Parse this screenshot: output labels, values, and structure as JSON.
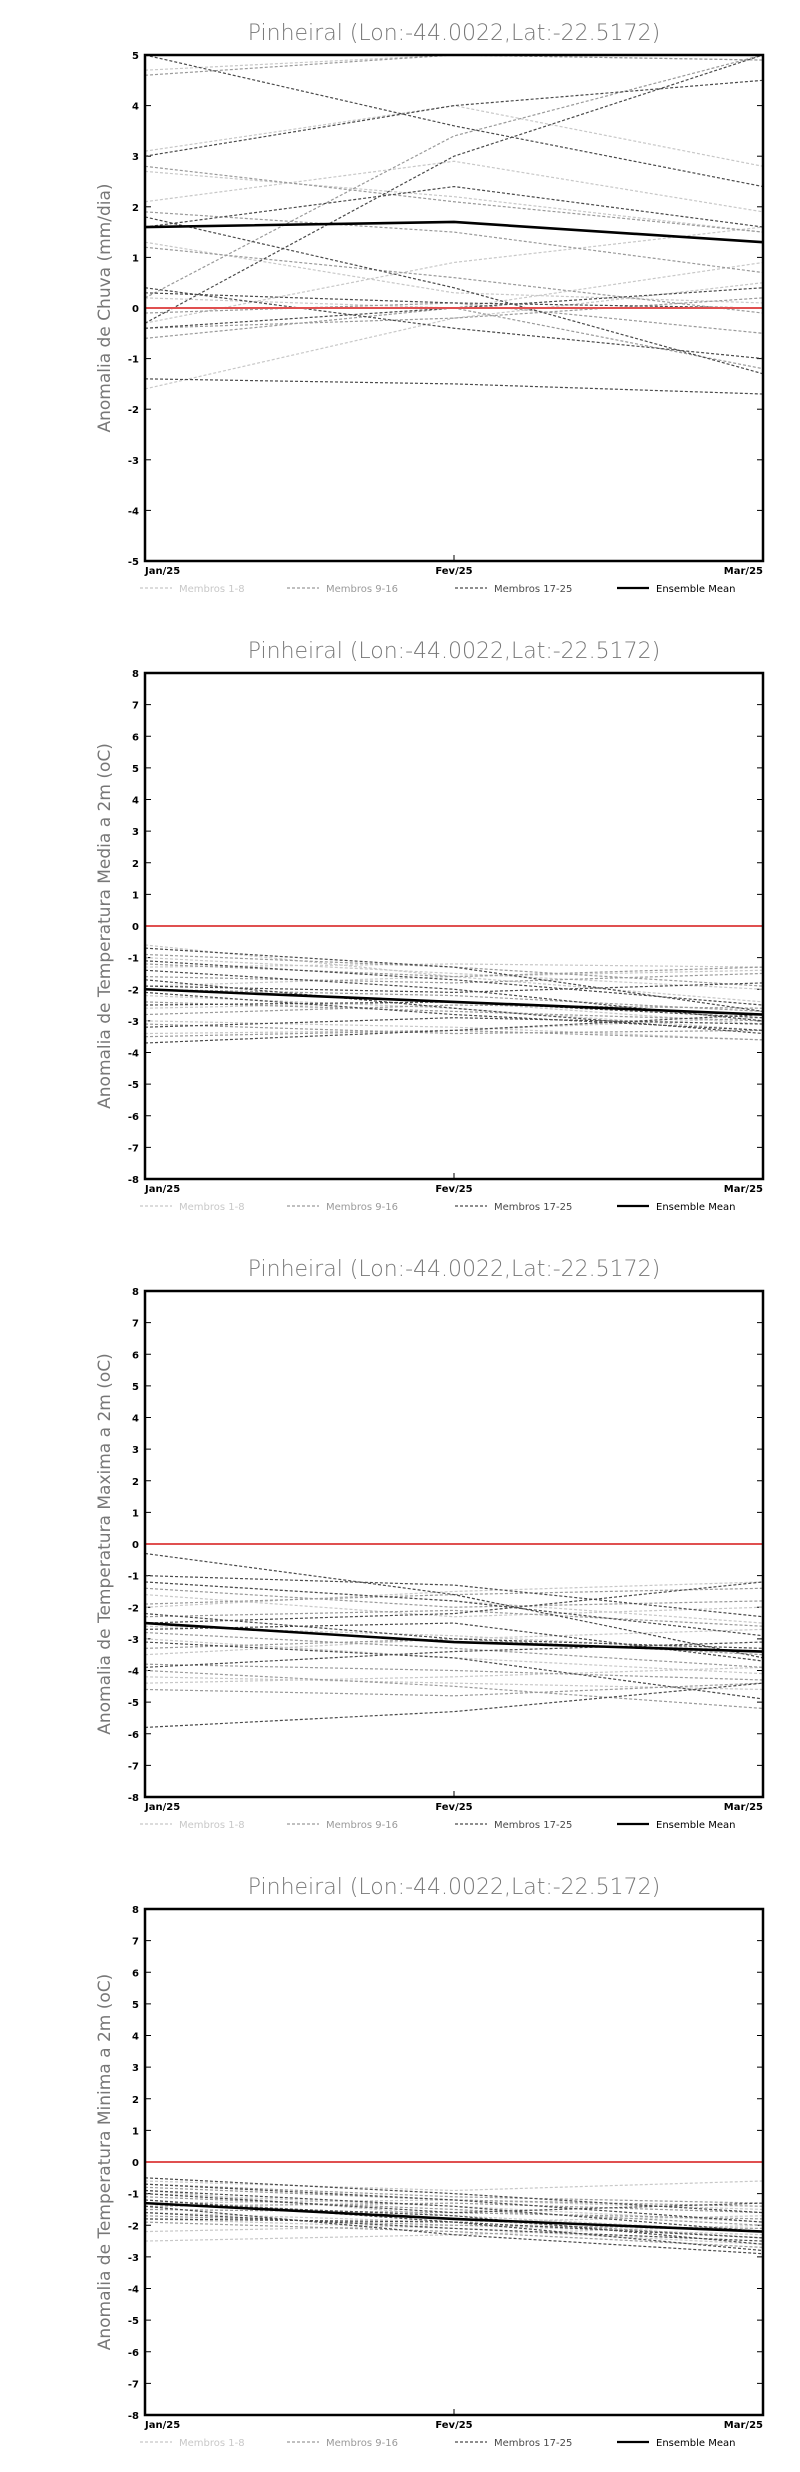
{
  "colors": {
    "zero_line": "#e05050",
    "members_1_8": "#c8c8c8",
    "members_9_16": "#9a9a9a",
    "members_17_25": "#4a4a4a",
    "ensemble_mean": "#000000",
    "title": "#777777",
    "axis": "#000000"
  },
  "legend": {
    "members_1_8": "Membros 1-8",
    "members_9_16": "Membros 9-16",
    "members_17_25": "Membros 17-25",
    "ensemble_mean": "Ensemble Mean"
  },
  "chart_data": [
    {
      "type": "line",
      "title": "Pinheiral (Lon:-44.0022,Lat:-22.5172)",
      "ylabel": "Anomalia de Chuva (mm/dia)",
      "categories": [
        "Jan/25",
        "Fev/25",
        "Mar/25"
      ],
      "ylim": [
        -5,
        5
      ],
      "yticks": [
        -5,
        -4,
        -3,
        -2,
        -1,
        0,
        1,
        2,
        3,
        4,
        5
      ],
      "grid": false,
      "legend_position": "bottom",
      "series": [
        {
          "group": "members_1_8",
          "values": [
            2.1,
            2.9,
            1.9
          ]
        },
        {
          "group": "members_1_8",
          "values": [
            -1.6,
            -0.2,
            0.5
          ]
        },
        {
          "group": "members_1_8",
          "values": [
            0.2,
            0.0,
            0.9
          ]
        },
        {
          "group": "members_1_8",
          "values": [
            -0.3,
            0.9,
            1.6
          ]
        },
        {
          "group": "members_1_8",
          "values": [
            4.7,
            5.0,
            4.9
          ]
        },
        {
          "group": "members_1_8",
          "values": [
            2.7,
            2.2,
            1.5
          ]
        },
        {
          "group": "members_1_8",
          "values": [
            3.1,
            4.0,
            2.8
          ]
        },
        {
          "group": "members_1_8",
          "values": [
            1.3,
            0.3,
            0.1
          ]
        },
        {
          "group": "members_9_16",
          "values": [
            -0.4,
            -0.2,
            0.2
          ]
        },
        {
          "group": "members_9_16",
          "values": [
            0.2,
            3.4,
            5.0
          ]
        },
        {
          "group": "members_9_16",
          "values": [
            2.8,
            2.1,
            1.5
          ]
        },
        {
          "group": "members_9_16",
          "values": [
            -0.1,
            0.1,
            -0.5
          ]
        },
        {
          "group": "members_9_16",
          "values": [
            4.6,
            5.0,
            4.9
          ]
        },
        {
          "group": "members_9_16",
          "values": [
            1.2,
            0.6,
            -0.1
          ]
        },
        {
          "group": "members_9_16",
          "values": [
            -0.6,
            0.0,
            -1.2
          ]
        },
        {
          "group": "members_9_16",
          "values": [
            1.9,
            1.5,
            0.7
          ]
        },
        {
          "group": "members_17_25",
          "values": [
            5.0,
            3.6,
            2.4
          ]
        },
        {
          "group": "members_17_25",
          "values": [
            -0.3,
            3.0,
            5.0
          ]
        },
        {
          "group": "members_17_25",
          "values": [
            3.0,
            4.0,
            4.5
          ]
        },
        {
          "group": "members_17_25",
          "values": [
            1.8,
            0.4,
            -1.3
          ]
        },
        {
          "group": "members_17_25",
          "values": [
            0.3,
            0.1,
            0.0
          ]
        },
        {
          "group": "members_17_25",
          "values": [
            -0.4,
            0.0,
            0.4
          ]
        },
        {
          "group": "members_17_25",
          "values": [
            1.6,
            2.4,
            1.6
          ]
        },
        {
          "group": "members_17_25",
          "values": [
            -1.4,
            -1.5,
            -1.7
          ]
        },
        {
          "group": "members_17_25",
          "values": [
            0.4,
            -0.4,
            -1.0
          ]
        },
        {
          "group": "ensemble_mean",
          "values": [
            1.6,
            1.7,
            1.3
          ]
        }
      ]
    },
    {
      "type": "line",
      "title": "Pinheiral (Lon:-44.0022,Lat:-22.5172)",
      "ylabel": "Anomalia de Temperatura Media a 2m (oC)",
      "categories": [
        "Jan/25",
        "Fev/25",
        "Mar/25"
      ],
      "ylim": [
        -8,
        8
      ],
      "yticks": [
        -8,
        -7,
        -6,
        -5,
        -4,
        -3,
        -2,
        -1,
        0,
        1,
        2,
        3,
        4,
        5,
        6,
        7,
        8
      ],
      "grid": false,
      "legend_position": "bottom",
      "series": [
        {
          "group": "members_1_8",
          "values": [
            -0.6,
            -1.6,
            -2.4
          ]
        },
        {
          "group": "members_1_8",
          "values": [
            -1.3,
            -1.2,
            -1.3
          ]
        },
        {
          "group": "members_1_8",
          "values": [
            -2.6,
            -2.4,
            -3.1
          ]
        },
        {
          "group": "members_1_8",
          "values": [
            -3.0,
            -3.2,
            -3.6
          ]
        },
        {
          "group": "members_1_8",
          "values": [
            -1.9,
            -1.6,
            -1.4
          ]
        },
        {
          "group": "members_1_8",
          "values": [
            -3.4,
            -3.3,
            -2.9
          ]
        },
        {
          "group": "members_1_8",
          "values": [
            -1.0,
            -1.5,
            -2.0
          ]
        },
        {
          "group": "members_1_8",
          "values": [
            -2.2,
            -2.6,
            -3.3
          ]
        },
        {
          "group": "members_9_16",
          "values": [
            -0.9,
            -1.3,
            -1.9
          ]
        },
        {
          "group": "members_9_16",
          "values": [
            -1.6,
            -1.8,
            -1.5
          ]
        },
        {
          "group": "members_9_16",
          "values": [
            -2.4,
            -2.7,
            -3.0
          ]
        },
        {
          "group": "members_9_16",
          "values": [
            -2.8,
            -2.5,
            -2.6
          ]
        },
        {
          "group": "members_9_16",
          "values": [
            -3.5,
            -3.3,
            -3.6
          ]
        },
        {
          "group": "members_9_16",
          "values": [
            -1.2,
            -1.6,
            -1.3
          ]
        },
        {
          "group": "members_9_16",
          "values": [
            -2.0,
            -2.2,
            -2.7
          ]
        },
        {
          "group": "members_9_16",
          "values": [
            -3.1,
            -3.4,
            -3.3
          ]
        },
        {
          "group": "members_17_25",
          "values": [
            -0.7,
            -1.3,
            -2.7
          ]
        },
        {
          "group": "members_17_25",
          "values": [
            -1.1,
            -1.7,
            -2.5
          ]
        },
        {
          "group": "members_17_25",
          "values": [
            -1.4,
            -2.0,
            -3.0
          ]
        },
        {
          "group": "members_17_25",
          "values": [
            -1.9,
            -2.1,
            -1.8
          ]
        },
        {
          "group": "members_17_25",
          "values": [
            -2.1,
            -2.8,
            -3.3
          ]
        },
        {
          "group": "members_17_25",
          "values": [
            -2.5,
            -2.4,
            -2.9
          ]
        },
        {
          "group": "members_17_25",
          "values": [
            -3.2,
            -2.9,
            -3.1
          ]
        },
        {
          "group": "members_17_25",
          "values": [
            -3.7,
            -3.3,
            -2.8
          ]
        },
        {
          "group": "members_17_25",
          "values": [
            -1.7,
            -2.6,
            -3.4
          ]
        },
        {
          "group": "ensemble_mean",
          "values": [
            -2.0,
            -2.4,
            -2.8
          ]
        }
      ]
    },
    {
      "type": "line",
      "title": "Pinheiral (Lon:-44.0022,Lat:-22.5172)",
      "ylabel": "Anomalia de Temperatura Maxima a 2m (oC)",
      "categories": [
        "Jan/25",
        "Fev/25",
        "Mar/25"
      ],
      "ylim": [
        -8,
        8
      ],
      "yticks": [
        -8,
        -7,
        -6,
        -5,
        -4,
        -3,
        -2,
        -1,
        0,
        1,
        2,
        3,
        4,
        5,
        6,
        7,
        8
      ],
      "grid": false,
      "legend_position": "bottom",
      "series": [
        {
          "group": "members_1_8",
          "values": [
            -1.2,
            -1.8,
            -2.5
          ]
        },
        {
          "group": "members_1_8",
          "values": [
            -3.5,
            -3.0,
            -2.7
          ]
        },
        {
          "group": "members_1_8",
          "values": [
            -4.2,
            -4.4,
            -4.6
          ]
        },
        {
          "group": "members_1_8",
          "values": [
            -2.0,
            -1.5,
            -1.2
          ]
        },
        {
          "group": "members_1_8",
          "values": [
            -3.0,
            -3.6,
            -4.1
          ]
        },
        {
          "group": "members_1_8",
          "values": [
            -4.4,
            -4.2,
            -3.9
          ]
        },
        {
          "group": "members_1_8",
          "values": [
            -2.6,
            -2.9,
            -3.4
          ]
        },
        {
          "group": "members_1_8",
          "values": [
            -1.6,
            -2.3,
            -2.0
          ]
        },
        {
          "group": "members_9_16",
          "values": [
            -1.9,
            -1.6,
            -1.4
          ]
        },
        {
          "group": "members_9_16",
          "values": [
            -2.8,
            -3.3,
            -3.9
          ]
        },
        {
          "group": "members_9_16",
          "values": [
            -4.0,
            -4.5,
            -5.2
          ]
        },
        {
          "group": "members_9_16",
          "values": [
            -3.3,
            -3.0,
            -3.5
          ]
        },
        {
          "group": "members_9_16",
          "values": [
            -2.3,
            -2.1,
            -2.6
          ]
        },
        {
          "group": "members_9_16",
          "values": [
            -3.8,
            -4.0,
            -4.3
          ]
        },
        {
          "group": "members_9_16",
          "values": [
            -1.4,
            -2.0,
            -1.8
          ]
        },
        {
          "group": "members_9_16",
          "values": [
            -4.6,
            -4.8,
            -4.4
          ]
        },
        {
          "group": "members_17_25",
          "values": [
            -0.3,
            -1.6,
            -3.6
          ]
        },
        {
          "group": "members_17_25",
          "values": [
            -1.0,
            -1.3,
            -2.3
          ]
        },
        {
          "group": "members_17_25",
          "values": [
            -5.8,
            -5.3,
            -4.4
          ]
        },
        {
          "group": "members_17_25",
          "values": [
            -2.5,
            -2.2,
            -1.2
          ]
        },
        {
          "group": "members_17_25",
          "values": [
            -3.9,
            -3.4,
            -3.1
          ]
        },
        {
          "group": "members_17_25",
          "values": [
            -2.2,
            -3.0,
            -3.3
          ]
        },
        {
          "group": "members_17_25",
          "values": [
            -1.2,
            -1.8,
            -2.9
          ]
        },
        {
          "group": "members_17_25",
          "values": [
            -3.1,
            -3.6,
            -4.9
          ]
        },
        {
          "group": "members_17_25",
          "values": [
            -2.7,
            -2.5,
            -3.7
          ]
        },
        {
          "group": "ensemble_mean",
          "values": [
            -2.5,
            -3.1,
            -3.4
          ]
        }
      ]
    },
    {
      "type": "line",
      "title": "Pinheiral (Lon:-44.0022,Lat:-22.5172)",
      "ylabel": "Anomalia de Temperatura Minima a 2m (oC)",
      "categories": [
        "Jan/25",
        "Fev/25",
        "Mar/25"
      ],
      "ylim": [
        -8,
        8
      ],
      "yticks": [
        -8,
        -7,
        -6,
        -5,
        -4,
        -3,
        -2,
        -1,
        0,
        1,
        2,
        3,
        4,
        5,
        6,
        7,
        8
      ],
      "grid": false,
      "legend_position": "bottom",
      "series": [
        {
          "group": "members_1_8",
          "values": [
            -0.6,
            -0.9,
            -0.6
          ]
        },
        {
          "group": "members_1_8",
          "values": [
            -2.5,
            -2.3,
            -2.0
          ]
        },
        {
          "group": "members_1_8",
          "values": [
            -1.8,
            -2.1,
            -2.6
          ]
        },
        {
          "group": "members_1_8",
          "values": [
            -1.0,
            -1.4,
            -1.9
          ]
        },
        {
          "group": "members_1_8",
          "values": [
            -2.2,
            -2.0,
            -2.3
          ]
        },
        {
          "group": "members_1_8",
          "values": [
            -1.3,
            -1.2,
            -1.5
          ]
        },
        {
          "group": "members_1_8",
          "values": [
            -0.9,
            -1.7,
            -2.2
          ]
        },
        {
          "group": "members_1_8",
          "values": [
            -1.6,
            -1.9,
            -1.7
          ]
        },
        {
          "group": "members_9_16",
          "values": [
            -0.8,
            -1.2,
            -1.4
          ]
        },
        {
          "group": "members_9_16",
          "values": [
            -1.5,
            -1.6,
            -1.8
          ]
        },
        {
          "group": "members_9_16",
          "values": [
            -1.2,
            -1.8,
            -2.4
          ]
        },
        {
          "group": "members_9_16",
          "values": [
            -1.9,
            -2.2,
            -2.7
          ]
        },
        {
          "group": "members_9_16",
          "values": [
            -1.1,
            -1.5,
            -2.0
          ]
        },
        {
          "group": "members_9_16",
          "values": [
            -1.7,
            -2.0,
            -2.1
          ]
        },
        {
          "group": "members_9_16",
          "values": [
            -0.7,
            -1.1,
            -1.3
          ]
        },
        {
          "group": "members_9_16",
          "values": [
            -1.4,
            -1.3,
            -1.6
          ]
        },
        {
          "group": "members_17_25",
          "values": [
            -0.5,
            -1.0,
            -1.6
          ]
        },
        {
          "group": "members_17_25",
          "values": [
            -0.9,
            -1.4,
            -2.2
          ]
        },
        {
          "group": "members_17_25",
          "values": [
            -1.2,
            -1.9,
            -2.8
          ]
        },
        {
          "group": "members_17_25",
          "values": [
            -1.6,
            -2.1,
            -2.5
          ]
        },
        {
          "group": "members_17_25",
          "values": [
            -1.0,
            -1.6,
            -1.3
          ]
        },
        {
          "group": "members_17_25",
          "values": [
            -1.4,
            -2.3,
            -2.9
          ]
        },
        {
          "group": "members_17_25",
          "values": [
            -0.7,
            -1.2,
            -1.9
          ]
        },
        {
          "group": "members_17_25",
          "values": [
            -1.8,
            -1.9,
            -2.4
          ]
        },
        {
          "group": "members_17_25",
          "values": [
            -1.3,
            -1.7,
            -2.6
          ]
        },
        {
          "group": "ensemble_mean",
          "values": [
            -1.3,
            -1.8,
            -2.2
          ]
        }
      ]
    }
  ]
}
